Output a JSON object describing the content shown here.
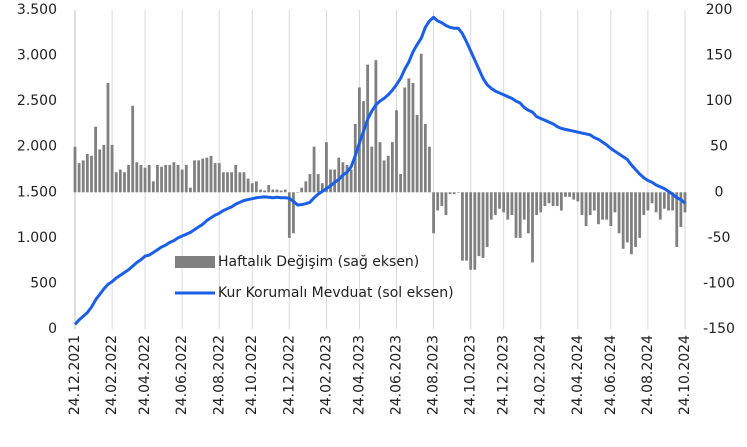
{
  "chart_data": {
    "type": "combo",
    "categories": [
      "24.12.2021",
      null,
      null,
      null,
      null,
      null,
      null,
      null,
      null,
      "24.02.2022",
      null,
      null,
      null,
      null,
      null,
      null,
      null,
      "24.04.2022",
      null,
      null,
      null,
      null,
      null,
      null,
      null,
      null,
      "24.06.2022",
      null,
      null,
      null,
      null,
      null,
      null,
      null,
      null,
      "24.08.2022",
      null,
      null,
      null,
      null,
      null,
      null,
      null,
      "24.10.2022",
      null,
      null,
      null,
      null,
      null,
      null,
      null,
      null,
      "24.12.2022",
      null,
      null,
      null,
      null,
      null,
      null,
      null,
      null,
      "24.02.2023",
      null,
      null,
      null,
      null,
      null,
      null,
      null,
      "24.04.2023",
      null,
      null,
      null,
      null,
      null,
      null,
      null,
      null,
      "24.06.2023",
      null,
      null,
      null,
      null,
      null,
      null,
      null,
      null,
      "24.08.2023",
      null,
      null,
      null,
      null,
      null,
      null,
      null,
      null,
      "24.10.2023",
      null,
      null,
      null,
      null,
      null,
      null,
      null,
      "24.12.2023",
      null,
      null,
      null,
      null,
      null,
      null,
      null,
      null,
      "24.02.2024",
      null,
      null,
      null,
      null,
      null,
      null,
      null,
      null,
      "24.04.2024",
      null,
      null,
      null,
      null,
      null,
      null,
      null,
      "24.06.2024",
      null,
      null,
      null,
      null,
      null,
      null,
      null,
      null,
      "24.08.2024",
      null,
      null,
      null,
      null,
      null,
      null,
      null,
      null,
      "24.10.2024"
    ],
    "series": [
      {
        "name": "Haftalık Değişim (sağ eksen)",
        "type": "bar",
        "axis": "y2",
        "color": "#808080",
        "values": [
          50,
          32,
          35,
          42,
          40,
          72,
          47,
          52,
          120,
          52,
          22,
          25,
          22,
          30,
          95,
          33,
          30,
          27,
          30,
          12,
          30,
          28,
          30,
          30,
          33,
          30,
          25,
          30,
          5,
          35,
          35,
          37,
          38,
          40,
          32,
          32,
          22,
          22,
          22,
          30,
          22,
          22,
          15,
          10,
          12,
          3,
          2,
          8,
          3,
          3,
          2,
          3,
          -50,
          -45,
          0,
          5,
          12,
          20,
          50,
          20,
          10,
          55,
          25,
          25,
          38,
          33,
          30,
          25,
          75,
          115,
          100,
          140,
          50,
          145,
          55,
          35,
          40,
          55,
          90,
          20,
          115,
          125,
          120,
          85,
          152,
          75,
          50,
          -45,
          -20,
          -15,
          -25,
          -2,
          -2,
          0,
          -75,
          -75,
          -85,
          -85,
          -70,
          -72,
          -60,
          -30,
          -25,
          -18,
          -22,
          -30,
          -25,
          -50,
          -50,
          -30,
          -45,
          -77,
          -25,
          -22,
          -15,
          -12,
          -15,
          -15,
          -20,
          -5,
          -5,
          -8,
          -10,
          -25,
          -37,
          -25,
          -20,
          -35,
          -30,
          -30,
          -37,
          -22,
          -45,
          -62,
          -55,
          -68,
          -60,
          -50,
          -25,
          -20,
          -12,
          -22,
          -30,
          -18,
          -20,
          -20,
          -60,
          -38,
          -22
        ]
      },
      {
        "name": "Kur Korumalı Mevduat (sol eksen)",
        "type": "line",
        "color": "#1a5fe6",
        "values": [
          50,
          100,
          140,
          180,
          240,
          320,
          380,
          440,
          490,
          520,
          560,
          590,
          620,
          650,
          690,
          730,
          760,
          800,
          810,
          840,
          870,
          900,
          920,
          950,
          970,
          1000,
          1020,
          1040,
          1060,
          1090,
          1120,
          1150,
          1190,
          1220,
          1250,
          1270,
          1300,
          1320,
          1340,
          1370,
          1390,
          1410,
          1420,
          1430,
          1440,
          1445,
          1450,
          1445,
          1440,
          1445,
          1440,
          1440,
          1435,
          1400,
          1360,
          1365,
          1375,
          1390,
          1440,
          1480,
          1510,
          1540,
          1570,
          1610,
          1640,
          1690,
          1720,
          1780,
          1900,
          2040,
          2170,
          2300,
          2390,
          2460,
          2500,
          2530,
          2570,
          2620,
          2680,
          2750,
          2850,
          2930,
          3040,
          3120,
          3190,
          3310,
          3380,
          3420,
          3380,
          3360,
          3330,
          3310,
          3300,
          3300,
          3240,
          3150,
          3050,
          2950,
          2850,
          2750,
          2680,
          2640,
          2610,
          2590,
          2570,
          2550,
          2530,
          2500,
          2480,
          2430,
          2400,
          2380,
          2330,
          2310,
          2290,
          2270,
          2250,
          2220,
          2200,
          2190,
          2180,
          2170,
          2160,
          2150,
          2140,
          2130,
          2100,
          2080,
          2050,
          2020,
          1980,
          1950,
          1920,
          1890,
          1860,
          1800,
          1750,
          1700,
          1660,
          1630,
          1610,
          1580,
          1560,
          1540,
          1510,
          1480,
          1440,
          1420,
          1380
        ]
      }
    ],
    "ylim": [
      0,
      3500
    ],
    "yticks": [
      0,
      500,
      {
        "value": 1000,
        "label": "1.000"
      },
      {
        "value": 1500,
        "label": "1.500"
      },
      {
        "value": 2000,
        "label": "2.000"
      },
      {
        "value": 2500,
        "label": "2.500"
      },
      {
        "value": 3000,
        "label": "3.000"
      },
      {
        "value": 3500,
        "label": "3.500"
      }
    ],
    "y2lim": [
      -150,
      200
    ],
    "y2ticks": [
      -150,
      -100,
      -50,
      0,
      50,
      100,
      150,
      200
    ],
    "grid": "x",
    "legend": "center-left"
  }
}
